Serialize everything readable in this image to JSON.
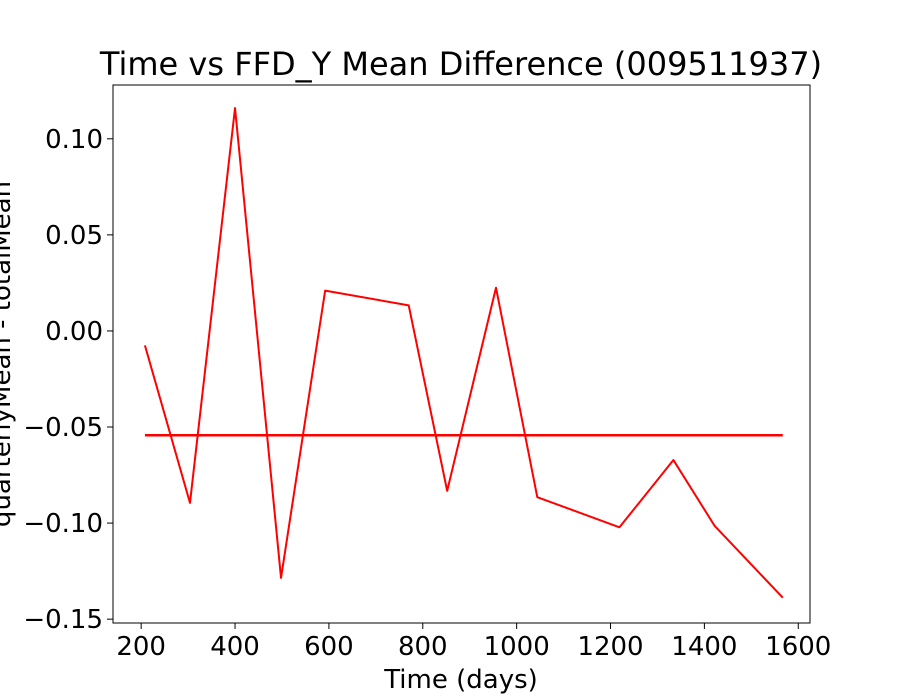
{
  "chart_data": {
    "type": "line",
    "title": "Time vs FFD_Y Mean Difference (009511937)",
    "xlabel": "Time (days)",
    "ylabel": "quarterlyMean - totalMean",
    "xlim": [
      140,
      1625
    ],
    "ylim": [
      -0.152,
      0.128
    ],
    "x_ticks": [
      200,
      400,
      600,
      800,
      1000,
      1200,
      1400,
      1600
    ],
    "x_tick_labels": [
      "200",
      "400",
      "600",
      "800",
      "1000",
      "1200",
      "1400",
      "1600"
    ],
    "y_ticks": [
      0.1,
      0.05,
      0.0,
      -0.05,
      -0.1,
      -0.15
    ],
    "y_tick_labels": [
      "0.10",
      "0.05",
      "0.00",
      "−0.05",
      "−0.10",
      "−0.15"
    ],
    "grid": false,
    "series": [
      {
        "style": "line",
        "color": "#ff0000",
        "x": [
          208,
          304,
          400,
          498,
          592,
          770,
          852,
          956,
          1044,
          1219,
          1334,
          1422,
          1567
        ],
        "y": [
          -0.0075,
          -0.0895,
          0.116,
          -0.1285,
          0.021,
          0.0133,
          -0.0832,
          0.0225,
          -0.0865,
          -0.1022,
          -0.0672,
          -0.1015,
          -0.1388
        ]
      },
      {
        "style": "line",
        "color": "#ff0000",
        "x": [
          208,
          1567
        ],
        "y": [
          -0.0543,
          -0.0543
        ]
      }
    ]
  }
}
